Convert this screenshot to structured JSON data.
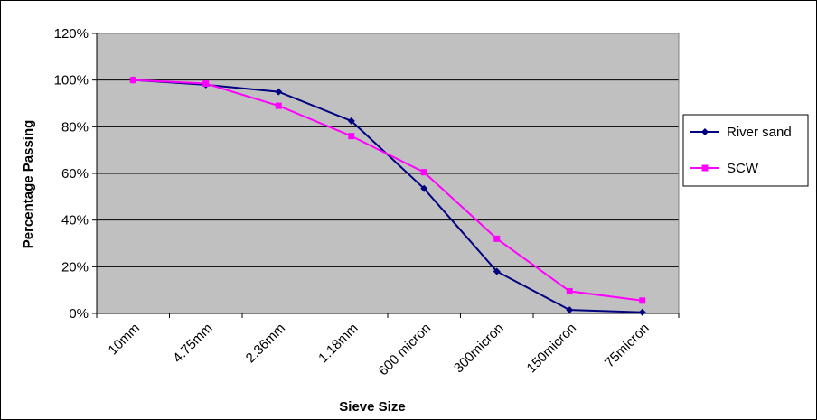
{
  "chart_data": {
    "type": "line",
    "title": "",
    "xlabel": "Sieve Size",
    "ylabel": "Percentage Passing",
    "categories": [
      "10mm",
      "4.75mm",
      "2.36mm",
      "1.18mm",
      "600 micron",
      "300micron",
      "150micron",
      "75micron"
    ],
    "ylim": [
      0,
      120
    ],
    "yticks": [
      "0%",
      "20%",
      "40%",
      "60%",
      "80%",
      "100%",
      "120%"
    ],
    "grid": true,
    "legend_position": "right",
    "plot_background": "#c0c0c0",
    "series": [
      {
        "name": "River sand",
        "color": "#000080",
        "marker": "diamond",
        "values": [
          100,
          98,
          95,
          82.5,
          53.5,
          18,
          1.5,
          0.5
        ]
      },
      {
        "name": "SCW",
        "color": "#ff00ff",
        "marker": "square",
        "values": [
          100,
          98.5,
          89,
          76,
          60.5,
          32,
          9.5,
          5.5
        ]
      }
    ]
  }
}
